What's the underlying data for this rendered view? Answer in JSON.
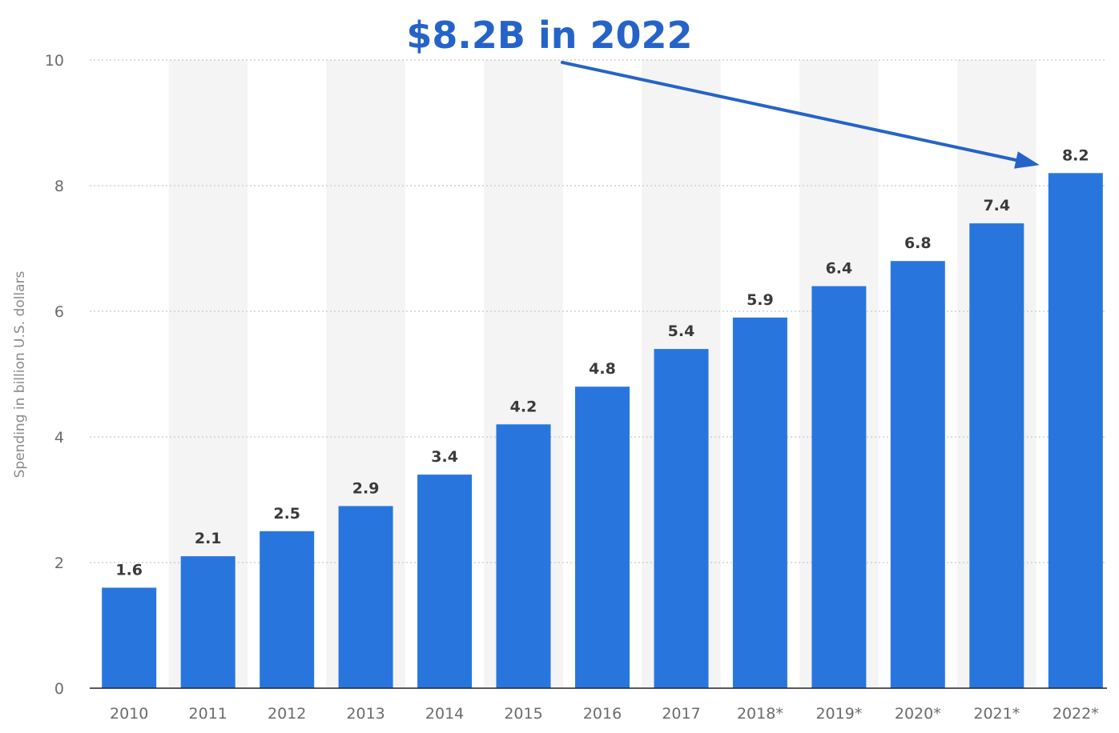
{
  "chart_data": {
    "type": "bar",
    "categories": [
      "2010",
      "2011",
      "2012",
      "2013",
      "2014",
      "2015",
      "2016",
      "2017",
      "2018*",
      "2019*",
      "2020*",
      "2021*",
      "2022*"
    ],
    "values": [
      1.6,
      2.1,
      2.5,
      2.9,
      3.4,
      4.2,
      4.8,
      5.4,
      5.9,
      6.4,
      6.8,
      7.4,
      8.2
    ],
    "data_labels": [
      "1.6",
      "2.1",
      "2.5",
      "2.9",
      "3.4",
      "4.2",
      "4.8",
      "5.4",
      "5.9",
      "6.4",
      "6.8",
      "7.4",
      "8.2"
    ],
    "ylabel": "Spending in billion U.S. dollars",
    "ylim": [
      0,
      10
    ],
    "yticks": [
      0,
      2,
      4,
      6,
      8,
      10
    ],
    "ytick_labels": [
      "0",
      "2",
      "4",
      "6",
      "8",
      "10"
    ],
    "grid": true,
    "annotation": {
      "text": "$8.2B in 2022",
      "target_category": "2022*"
    },
    "colors": {
      "bar": "#2876dd",
      "alt_band": "#f4f4f4",
      "annotation": "#2563c9",
      "grid": "#c8c8c8"
    }
  }
}
